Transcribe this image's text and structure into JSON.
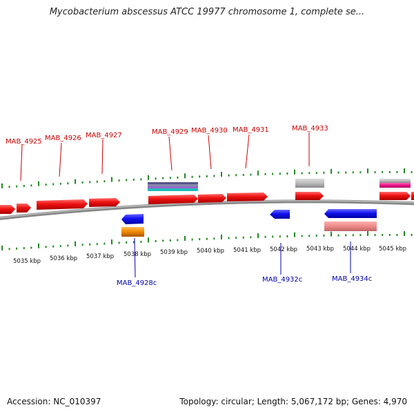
{
  "title": "Mycobacterium abscessus ATCC 19977 chromosome 1, complete se...",
  "footer": {
    "accession": "Accession: NC_010397",
    "stats": "Topology: circular; Length: 5,067,172 bp; Genes: 4,970"
  },
  "scale_labels": [
    "5035 kbp",
    "5036 kbp",
    "5037 kbp",
    "5038 kbp",
    "5039 kbp",
    "5040 kbp",
    "5041 kbp",
    "5042 kbp",
    "5043 kbp",
    "5044 kbp",
    "5045 kbp"
  ],
  "top_labels": [
    "MAB_4925",
    "MAB_4926",
    "MAB_4927",
    "MAB_4929",
    "MAB_4930",
    "MAB_4931",
    "MAB_4933"
  ],
  "bottom_labels": [
    "MAB_4928c",
    "MAB_4932c",
    "MAB_4934c"
  ],
  "colors": {
    "forward_cds": "#ee1111",
    "reverse_cds": "#1111ee",
    "tick": "#228822",
    "backbone": "#888888",
    "label_forward": "#cc0000",
    "label_reverse": "#0000aa"
  }
}
